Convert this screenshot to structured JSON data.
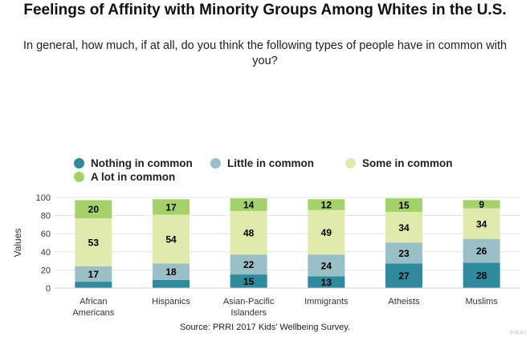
{
  "title": "Feelings of Affinity with Minority Groups Among Whites in the U.S.",
  "subtitle": "In general, how much, if at all, do you think the following types of people have in common with you?",
  "source": "Source: PRRI 2017 Kids' Wellbeing Survey.",
  "watermark": "PRRI",
  "legend": [
    {
      "label": "Nothing in common",
      "color": "#2f8a9e"
    },
    {
      "label": "Little in common",
      "color": "#9bbfc7"
    },
    {
      "label": "Some in common",
      "color": "#e0eaad"
    },
    {
      "label": "A lot in common",
      "color": "#a5d16a"
    }
  ],
  "chart_data": {
    "type": "bar",
    "stacked": true,
    "title": "Feelings of Affinity with Minority Groups Among Whites in the U.S.",
    "xlabel": "",
    "ylabel": "Values",
    "ylim": [
      0,
      100
    ],
    "yticks": [
      0,
      20,
      40,
      60,
      80,
      100
    ],
    "grid": true,
    "legend_position": "top",
    "categories": [
      "African Americans",
      "Hispanics",
      "Asian-Pacific Islanders",
      "Immigrants",
      "Atheists",
      "Muslims"
    ],
    "category_lines": [
      [
        "African",
        "Americans"
      ],
      [
        "Hispanics"
      ],
      [
        "Asian-Pacific",
        "Islanders"
      ],
      [
        "Immigrants"
      ],
      [
        "Atheists"
      ],
      [
        "Muslims"
      ]
    ],
    "series": [
      {
        "name": "Nothing in common",
        "color": "#2f8a9e",
        "label_color": "#000000",
        "values": [
          7,
          9,
          15,
          13,
          27,
          28
        ],
        "labels": [
          "",
          "",
          "15",
          "13",
          "27",
          "28"
        ]
      },
      {
        "name": "Little in common",
        "color": "#9bbfc7",
        "label_color": "#000000",
        "values": [
          17,
          18,
          22,
          24,
          23,
          26
        ],
        "labels": [
          "17",
          "18",
          "22",
          "24",
          "23",
          "26"
        ]
      },
      {
        "name": "Some in common",
        "color": "#e0eaad",
        "label_color": "#000000",
        "values": [
          53,
          54,
          48,
          49,
          34,
          34
        ],
        "labels": [
          "53",
          "54",
          "48",
          "49",
          "34",
          "34"
        ]
      },
      {
        "name": "A lot in common",
        "color": "#a5d16a",
        "label_color": "#000000",
        "values": [
          20,
          17,
          14,
          12,
          15,
          9
        ],
        "labels": [
          "20",
          "17",
          "14",
          "12",
          "15",
          "9"
        ]
      }
    ]
  }
}
